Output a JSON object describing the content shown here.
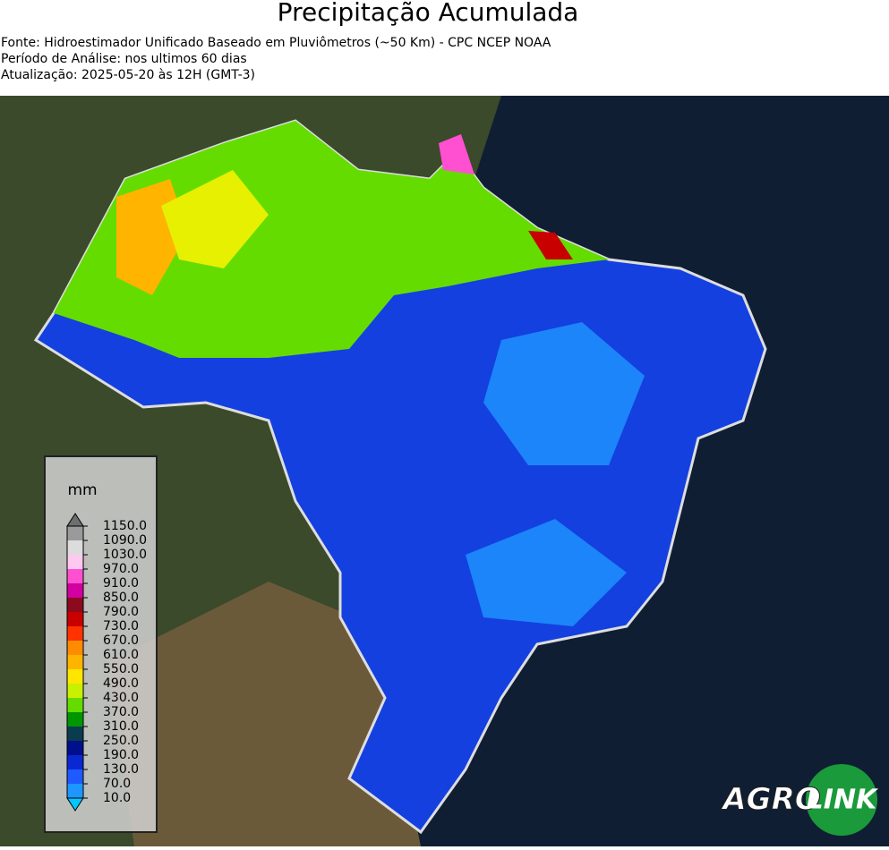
{
  "header": {
    "title": "Precipitação Acumulada",
    "lines": [
      "Fonte: Hidroestimador Unificado Baseado em Pluviômetros (~50 Km) - CPC NCEP NOAA",
      "Período de Análise: nos ultimos 60 dias",
      "Atualização: 2025-05-20 às 12H (GMT-3)"
    ]
  },
  "legend": {
    "unit": "mm",
    "labels": [
      "1150.0",
      "1090.0",
      "1030.0",
      "970.0",
      "910.0",
      "850.0",
      "790.0",
      "730.0",
      "670.0",
      "610.0",
      "550.0",
      "490.0",
      "430.0",
      "370.0",
      "310.0",
      "250.0",
      "190.0",
      "130.0",
      "70.0",
      "10.0"
    ],
    "colors": [
      "#9a9a9a",
      "#dcdcdc",
      "#ffc8f0",
      "#ff50d2",
      "#d200a0",
      "#8c0a1e",
      "#c80000",
      "#ff3200",
      "#ff8c00",
      "#ffb400",
      "#ffe600",
      "#c8f000",
      "#64dc00",
      "#009600",
      "#0a3c50",
      "#000f8c",
      "#0a28d2",
      "#1e5aff",
      "#1e96ff"
    ],
    "top_color": "#6e6e6e",
    "bottom_color": "#00c8ff"
  },
  "logo": {
    "left": "AGRO",
    "right": "LINK"
  }
}
